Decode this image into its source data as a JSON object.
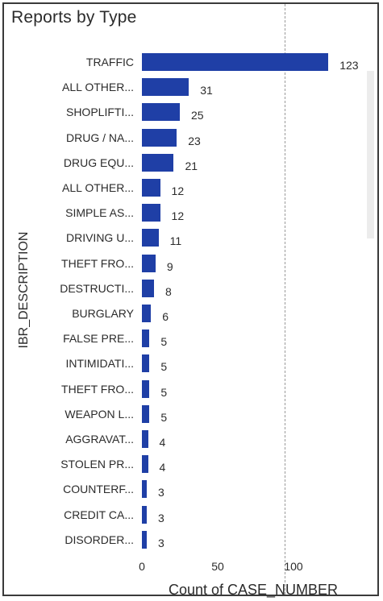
{
  "chart_data": {
    "type": "bar",
    "orientation": "horizontal",
    "title": "Reports by Type",
    "ylabel": "IBR_DESCRIPTION",
    "xlabel": "Count of CASE_NUMBER",
    "xlim": [
      0,
      125
    ],
    "xticks": [
      "0",
      "50",
      "100"
    ],
    "bar_color": "#1f3fa6",
    "categories": [
      "TRAFFIC",
      "ALL OTHER...",
      "SHOPLIFTI...",
      "DRUG / NA...",
      "DRUG EQU...",
      "ALL OTHER...",
      "SIMPLE AS...",
      "DRIVING U...",
      "THEFT FRO...",
      "DESTRUCTI...",
      "BURGLARY",
      "FALSE PRE...",
      "INTIMIDATI...",
      "THEFT FRO...",
      "WEAPON L...",
      "AGGRAVAT...",
      "STOLEN PR...",
      "COUNTERF...",
      "CREDIT CA...",
      "DISORDER..."
    ],
    "values": [
      123,
      31,
      25,
      23,
      21,
      12,
      12,
      11,
      9,
      8,
      6,
      5,
      5,
      5,
      5,
      4,
      4,
      3,
      3,
      3
    ]
  }
}
